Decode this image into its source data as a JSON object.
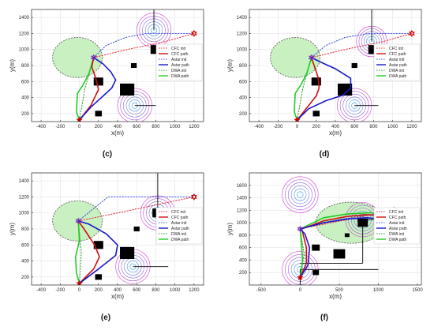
{
  "colors": {
    "cfc_init": "#e8303c",
    "cfc_path": "#d01010",
    "astar_init": "#4050d8",
    "astar_path": "#1818c8",
    "dwa_init": "#2c9a2c",
    "dwa_path": "#22cc22",
    "hazard_fill": "#c8f0c0",
    "hazard_edge": "#555555",
    "ring_inner": "#30a0f0",
    "ring_outer": "#d040d0",
    "obstacle": "#000000",
    "start_marker": "#d00000",
    "goal_marker": "#d00000",
    "waypoint_marker": "#8030c0"
  },
  "chart_data": [
    {
      "type": "line",
      "panel_label": "(c)",
      "xlabel": "x(m)",
      "ylabel": "y(m)",
      "xlim": [
        -500,
        1300
      ],
      "ylim": [
        100,
        1500
      ],
      "xticks": [
        -400,
        -200,
        0,
        200,
        400,
        600,
        800,
        1000,
        1200
      ],
      "yticks": [
        200,
        400,
        600,
        800,
        1000,
        1200,
        1400
      ],
      "grid": true,
      "legend_position": "inside-right",
      "legend": [
        "CFC init",
        "CFC path",
        "Astar init",
        "Astar path",
        "DWA init",
        "DWA path"
      ],
      "start": [
        0,
        120
      ],
      "goal": [
        1200,
        1200
      ],
      "hazard_zones": [
        {
          "center": [
            -20,
            900
          ],
          "rx": 260,
          "ry": 250
        }
      ],
      "threats": [
        {
          "center": [
            780,
            1240
          ],
          "radius": 180
        },
        {
          "center": [
            580,
            300
          ],
          "radius": 180
        }
      ],
      "threat_lines": [
        {
          "from": [
            780,
            1240
          ],
          "to": [
            780,
            1500
          ]
        },
        {
          "from": [
            580,
            300
          ],
          "to": [
            800,
            300
          ]
        }
      ],
      "obstacles": [
        {
          "center": [
            200,
            600
          ],
          "size": 100
        },
        {
          "center": [
            500,
            500
          ],
          "size": 150
        },
        {
          "center": [
            800,
            1000
          ],
          "size": 110
        },
        {
          "center": [
            570,
            800
          ],
          "size": 60
        },
        {
          "center": [
            200,
            200
          ],
          "size": 70
        }
      ],
      "series": [
        {
          "name": "Astar init",
          "kind": "init",
          "x": [
            150,
            280,
            480,
            700,
            1200
          ],
          "y": [
            900,
            1050,
            1150,
            1200,
            1200
          ]
        },
        {
          "name": "CFC init",
          "kind": "init",
          "x": [
            150,
            500,
            900,
            1200
          ],
          "y": [
            900,
            1000,
            1100,
            1200
          ]
        },
        {
          "name": "DWA init",
          "kind": "init",
          "x": [
            0,
            60,
            150
          ],
          "y": [
            120,
            520,
            900
          ]
        },
        {
          "name": "DWA path",
          "kind": "path",
          "x": [
            0,
            -30,
            -20,
            40,
            100,
            150
          ],
          "y": [
            120,
            220,
            450,
            560,
            700,
            900
          ]
        },
        {
          "name": "CFC path",
          "kind": "path",
          "x": [
            0,
            120,
            200,
            170,
            130,
            150
          ],
          "y": [
            120,
            300,
            500,
            650,
            780,
            900
          ]
        },
        {
          "name": "Astar path",
          "kind": "path",
          "x": [
            0,
            120,
            250,
            340,
            380,
            330,
            250,
            150
          ],
          "y": [
            120,
            280,
            420,
            520,
            620,
            720,
            820,
            900
          ]
        }
      ]
    },
    {
      "type": "line",
      "panel_label": "(d)",
      "xlabel": "x(m)",
      "ylabel": "y(m)",
      "xlim": [
        -500,
        1300
      ],
      "ylim": [
        100,
        1500
      ],
      "xticks": [
        -400,
        -200,
        0,
        200,
        400,
        600,
        800,
        1000,
        1200
      ],
      "yticks": [
        200,
        400,
        600,
        800,
        1000,
        1200,
        1400
      ],
      "grid": true,
      "legend_position": "inside-right",
      "legend": [
        "CFC init",
        "CFC path",
        "Astar init",
        "Astar path",
        "DWA init",
        "DWA path"
      ],
      "start": [
        0,
        120
      ],
      "goal": [
        1200,
        1200
      ],
      "hazard_zones": [
        {
          "center": [
            -20,
            900
          ],
          "rx": 260,
          "ry": 250
        }
      ],
      "threats": [
        {
          "center": [
            780,
            1100
          ],
          "radius": 160
        },
        {
          "center": [
            600,
            300
          ],
          "radius": 180
        }
      ],
      "threat_lines": [
        {
          "from": [
            780,
            1100
          ],
          "to": [
            780,
            1500
          ]
        },
        {
          "from": [
            600,
            300
          ],
          "to": [
            850,
            300
          ]
        }
      ],
      "obstacles": [
        {
          "center": [
            200,
            600
          ],
          "size": 100
        },
        {
          "center": [
            500,
            500
          ],
          "size": 150
        },
        {
          "center": [
            800,
            1000
          ],
          "size": 110
        },
        {
          "center": [
            600,
            800
          ],
          "size": 60
        },
        {
          "center": [
            200,
            200
          ],
          "size": 70
        }
      ],
      "series": [
        {
          "name": "Astar init",
          "kind": "init",
          "x": [
            150,
            300,
            500,
            750,
            1000,
            1200
          ],
          "y": [
            900,
            1050,
            1150,
            1200,
            1200,
            1200
          ]
        },
        {
          "name": "CFC init",
          "kind": "init",
          "x": [
            150,
            500,
            900,
            1200
          ],
          "y": [
            900,
            1000,
            1100,
            1200
          ]
        },
        {
          "name": "DWA init",
          "kind": "init",
          "x": [
            0,
            60,
            150
          ],
          "y": [
            120,
            520,
            900
          ]
        },
        {
          "name": "DWA path",
          "kind": "path",
          "x": [
            0,
            -30,
            -20,
            40,
            100,
            150
          ],
          "y": [
            120,
            220,
            450,
            560,
            700,
            900
          ]
        },
        {
          "name": "CFC path",
          "kind": "path",
          "x": [
            0,
            120,
            200,
            230,
            220,
            150
          ],
          "y": [
            120,
            300,
            420,
            520,
            650,
            900
          ]
        },
        {
          "name": "Astar path",
          "kind": "path",
          "x": [
            0,
            120,
            300,
            480,
            560,
            560,
            400,
            250,
            150
          ],
          "y": [
            120,
            260,
            360,
            430,
            520,
            640,
            760,
            840,
            900
          ]
        }
      ]
    },
    {
      "type": "line",
      "panel_label": "(e)",
      "xlabel": "x(m)",
      "ylabel": "y(m)",
      "xlim": [
        -500,
        1300
      ],
      "ylim": [
        100,
        1500
      ],
      "xticks": [
        -400,
        -200,
        0,
        200,
        400,
        600,
        800,
        1000,
        1200
      ],
      "yticks": [
        200,
        400,
        600,
        800,
        1000,
        1200,
        1400
      ],
      "grid": true,
      "legend_position": "inside-right",
      "legend": [
        "CFC init",
        "CFC path",
        "Astar init",
        "Astar path",
        "DWA init",
        "DWA path"
      ],
      "start": [
        0,
        120
      ],
      "goal": [
        1200,
        1200
      ],
      "hazard_zones": [
        {
          "center": [
            -20,
            900
          ],
          "rx": 260,
          "ry": 250
        }
      ],
      "threats": [
        {
          "center": [
            820,
            1000
          ],
          "radius": 180
        },
        {
          "center": [
            560,
            330
          ],
          "radius": 180
        }
      ],
      "threat_lines": [
        {
          "from": [
            820,
            1000
          ],
          "to": [
            820,
            1500
          ]
        },
        {
          "from": [
            560,
            330
          ],
          "to": [
            930,
            330
          ]
        }
      ],
      "obstacles": [
        {
          "center": [
            200,
            600
          ],
          "size": 100
        },
        {
          "center": [
            500,
            500
          ],
          "size": 150
        },
        {
          "center": [
            820,
            1000
          ],
          "size": 110
        },
        {
          "center": [
            600,
            800
          ],
          "size": 60
        },
        {
          "center": [
            200,
            200
          ],
          "size": 70
        }
      ],
      "series": [
        {
          "name": "Astar init",
          "kind": "init",
          "x": [
            -10,
            300,
            700,
            1200
          ],
          "y": [
            900,
            1200,
            1200,
            1200
          ]
        },
        {
          "name": "CFC init",
          "kind": "init",
          "x": [
            -10,
            400,
            800,
            1200
          ],
          "y": [
            900,
            1000,
            1100,
            1200
          ]
        },
        {
          "name": "DWA init",
          "kind": "init",
          "x": [
            0,
            20,
            -10
          ],
          "y": [
            120,
            500,
            900
          ]
        },
        {
          "name": "DWA path",
          "kind": "path",
          "x": [
            0,
            -30,
            -40,
            0,
            -10
          ],
          "y": [
            120,
            250,
            450,
            650,
            900
          ]
        },
        {
          "name": "CFC path",
          "kind": "path",
          "x": [
            0,
            150,
            210,
            160,
            60,
            -10
          ],
          "y": [
            120,
            300,
            450,
            600,
            780,
            900
          ]
        },
        {
          "name": "Astar path",
          "kind": "path",
          "x": [
            0,
            200,
            380,
            400,
            280,
            100,
            -10
          ],
          "y": [
            120,
            300,
            470,
            600,
            740,
            860,
            900
          ]
        }
      ]
    },
    {
      "type": "line",
      "panel_label": "(f)",
      "xlabel": "x(m)",
      "ylabel": "y(m)",
      "xlim": [
        -650,
        1550
      ],
      "ylim": [
        0,
        1800
      ],
      "xticks": [
        -500,
        0,
        500,
        1000,
        1500
      ],
      "yticks": [
        200,
        400,
        600,
        800,
        1000,
        1200,
        1400,
        1600
      ],
      "grid": true,
      "legend_position": "inside-right",
      "legend": [
        "CFC init",
        "CFC path",
        "Astar init",
        "Astar path",
        "DWA init",
        "DWA path"
      ],
      "start": [
        0,
        120
      ],
      "goal": [
        1200,
        1200
      ],
      "hazard_zones": [
        {
          "center": [
            650,
            1000
          ],
          "rx": 450,
          "ry": 330
        }
      ],
      "threats": [
        {
          "center": [
            0,
            1450
          ],
          "radius": 230
        },
        {
          "center": [
            0,
            250
          ],
          "radius": 230
        },
        {
          "center": [
            800,
            1050
          ],
          "radius": 220
        }
      ],
      "threat_lines": [
        {
          "from": [
            0,
            250
          ],
          "to": [
            1000,
            250
          ]
        },
        {
          "from": [
            0,
            250
          ],
          "to": [
            0,
            0
          ]
        },
        {
          "from": [
            800,
            1050
          ],
          "to": [
            800,
            350
          ]
        },
        {
          "from": [
            800,
            1050
          ],
          "to": [
            1500,
            1050
          ]
        },
        {
          "from": [
            800,
            350
          ],
          "to": [
            0,
            350
          ]
        }
      ],
      "obstacles": [
        {
          "center": [
            200,
            600
          ],
          "size": 100
        },
        {
          "center": [
            500,
            500
          ],
          "size": 150
        },
        {
          "center": [
            800,
            1000
          ],
          "size": 130
        },
        {
          "center": [
            600,
            800
          ],
          "size": 60
        },
        {
          "center": [
            200,
            200
          ],
          "size": 80
        }
      ],
      "series": [
        {
          "name": "Astar init",
          "kind": "init",
          "x": [
            0,
            500,
            1000,
            1200
          ],
          "y": [
            900,
            1050,
            1150,
            1200
          ]
        },
        {
          "name": "CFC init",
          "kind": "init",
          "x": [
            0,
            600,
            1200
          ],
          "y": [
            900,
            1050,
            1200
          ]
        },
        {
          "name": "DWA init",
          "kind": "init",
          "x": [
            0,
            50,
            0
          ],
          "y": [
            120,
            500,
            900
          ]
        },
        {
          "name": "DWA path",
          "kind": "path",
          "x": [
            0,
            30,
            20,
            0,
            300,
            600,
            900,
            1050,
            1200
          ],
          "y": [
            120,
            380,
            620,
            900,
            1080,
            1140,
            1160,
            1140,
            1200
          ]
        },
        {
          "name": "CFC path",
          "kind": "path",
          "x": [
            0,
            80,
            80,
            40,
            20,
            300,
            600,
            850,
            1050,
            1200
          ],
          "y": [
            120,
            350,
            600,
            800,
            900,
            1030,
            1100,
            1130,
            1110,
            1200
          ]
        },
        {
          "name": "Astar path",
          "kind": "path",
          "x": [
            0,
            100,
            120,
            60,
            0,
            300,
            600,
            850,
            1050,
            1200
          ],
          "y": [
            120,
            320,
            600,
            820,
            900,
            1000,
            1060,
            1080,
            1060,
            1200
          ]
        }
      ]
    }
  ]
}
